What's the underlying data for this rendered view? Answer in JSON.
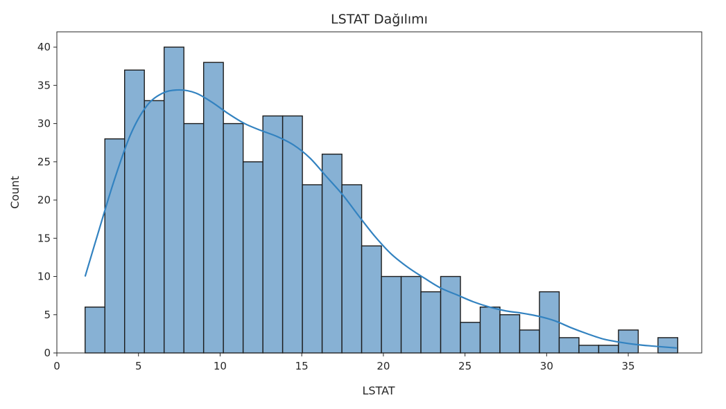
{
  "chart_data": {
    "type": "bar",
    "subtype": "histogram with kde line",
    "title": "LSTAT Dağılımı",
    "xlabel": "LSTAT",
    "ylabel": "Count",
    "xlim": [
      0,
      39.5
    ],
    "ylim": [
      0,
      42
    ],
    "x_ticks": [
      0,
      5,
      10,
      15,
      20,
      25,
      30,
      35
    ],
    "y_ticks": [
      0,
      5,
      10,
      15,
      20,
      25,
      30,
      35,
      40
    ],
    "grid": false,
    "legend": false,
    "bin_start": 1.73,
    "bin_width": 1.21,
    "values": [
      6,
      28,
      37,
      33,
      40,
      30,
      38,
      30,
      25,
      31,
      31,
      22,
      26,
      22,
      14,
      10,
      10,
      8,
      10,
      4,
      6,
      5,
      3,
      8,
      2,
      1,
      1,
      3,
      0,
      2
    ],
    "kde": {
      "x": [
        1.73,
        2.5,
        3.5,
        4.5,
        5.5,
        6.5,
        7.5,
        8.5,
        9.5,
        10.5,
        11.5,
        12.5,
        13.5,
        14.5,
        15.5,
        16.5,
        17.5,
        18.5,
        19.5,
        20.5,
        21.5,
        22.5,
        23.5,
        24.5,
        25.5,
        26.5,
        27.5,
        28.5,
        29.5,
        30.5,
        31.5,
        32.5,
        33.5,
        34.5,
        35.5,
        36.5,
        37.97
      ],
      "y": [
        10,
        15.5,
        22.5,
        28.5,
        32.3,
        34.0,
        34.4,
        34.0,
        32.8,
        31.3,
        30.0,
        29.1,
        28.3,
        27.2,
        25.5,
        23.1,
        20.7,
        17.9,
        15.2,
        12.9,
        11.2,
        9.8,
        8.5,
        7.6,
        6.7,
        6.0,
        5.5,
        5.2,
        4.8,
        4.2,
        3.3,
        2.5,
        1.8,
        1.4,
        1.1,
        0.9,
        0.65
      ]
    },
    "colors": {
      "bar_fill": "#87b1d4",
      "bar_edge": "#1a1a1a",
      "kde_line": "#3282c0"
    }
  }
}
